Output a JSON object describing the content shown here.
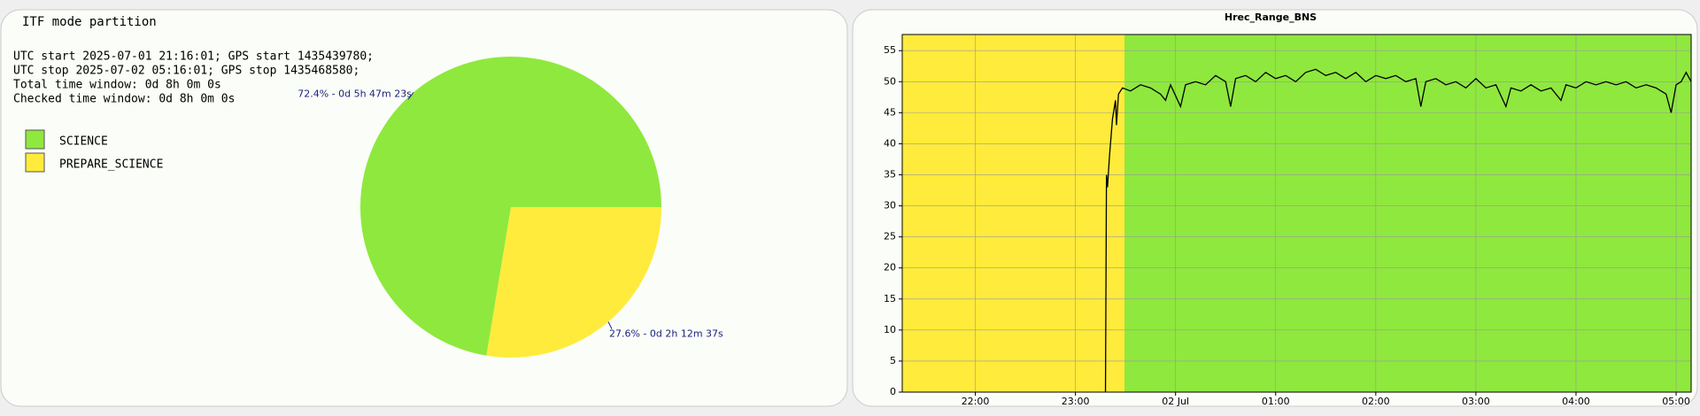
{
  "chart_data": [
    {
      "type": "pie",
      "title": "ITF mode partition",
      "annotations": [
        "UTC start 2025-07-01 21:16:01; GPS start 1435439780;",
        "UTC stop 2025-07-02 05:16:01; GPS stop 1435468580;",
        "Total time window: 0d 8h 0m 0s",
        "Checked time window: 0d 8h 0m 0s"
      ],
      "categories": [
        "SCIENCE",
        "PREPARE_SCIENCE"
      ],
      "values": [
        72.4,
        27.6
      ],
      "value_labels": [
        "72.4% - 0d 5h 47m 23s",
        "27.6% - 0d 2h 12m 37s"
      ],
      "colors": [
        "#8fe83e",
        "#ffeb3b"
      ]
    },
    {
      "type": "line",
      "title": "Hrec_Range_BNS",
      "xlim": [
        21.27,
        29.15
      ],
      "ylim": [
        0,
        57.6
      ],
      "xticks": [
        {
          "value": 22,
          "label": "22:00"
        },
        {
          "value": 23,
          "label": "23:00"
        },
        {
          "value": 24,
          "label": "02 Jul"
        },
        {
          "value": 25,
          "label": "01:00"
        },
        {
          "value": 26,
          "label": "02:00"
        },
        {
          "value": 27,
          "label": "03:00"
        },
        {
          "value": 28,
          "label": "04:00"
        },
        {
          "value": 29,
          "label": "05:00"
        }
      ],
      "yticks": [
        0,
        5,
        10,
        15,
        20,
        25,
        30,
        35,
        40,
        45,
        50,
        55
      ],
      "grid": true,
      "regions": [
        {
          "from": 21.27,
          "to": 23.49,
          "color": "#ffeb3b"
        },
        {
          "from": 23.49,
          "to": 29.15,
          "color": "#8fe83e"
        }
      ],
      "color": "#000000",
      "x": [
        23.3,
        23.31,
        23.32,
        23.34,
        23.37,
        23.4,
        23.41,
        23.43,
        23.47,
        23.55,
        23.65,
        23.75,
        23.85,
        23.9,
        23.95,
        24.05,
        24.1,
        24.2,
        24.3,
        24.4,
        24.5,
        24.55,
        24.6,
        24.7,
        24.8,
        24.9,
        25.0,
        25.1,
        25.2,
        25.3,
        25.4,
        25.5,
        25.6,
        25.7,
        25.8,
        25.9,
        26.0,
        26.1,
        26.2,
        26.3,
        26.4,
        26.45,
        26.5,
        26.6,
        26.7,
        26.8,
        26.9,
        27.0,
        27.1,
        27.2,
        27.3,
        27.35,
        27.45,
        27.55,
        27.65,
        27.75,
        27.85,
        27.9,
        28.0,
        28.1,
        28.2,
        28.3,
        28.4,
        28.5,
        28.6,
        28.7,
        28.8,
        28.9,
        28.95,
        29.0,
        29.05,
        29.1,
        29.15
      ],
      "values": [
        0,
        35,
        33,
        38,
        44,
        47,
        43,
        48,
        49,
        48.5,
        49.5,
        49,
        48,
        47,
        49.5,
        46,
        49.5,
        50,
        49.5,
        51,
        50,
        46,
        50.5,
        51,
        50,
        51.5,
        50.5,
        51,
        50,
        51.5,
        52,
        51,
        51.5,
        50.5,
        51.5,
        50,
        51,
        50.5,
        51,
        50,
        50.5,
        46,
        50,
        50.5,
        49.5,
        50,
        49,
        50.5,
        49,
        49.5,
        46,
        49,
        48.5,
        49.5,
        48.5,
        49,
        47,
        49.5,
        49,
        50,
        49.5,
        50,
        49.5,
        50,
        49,
        49.5,
        49,
        48,
        45,
        49.5,
        50,
        51.5,
        50
      ]
    }
  ]
}
